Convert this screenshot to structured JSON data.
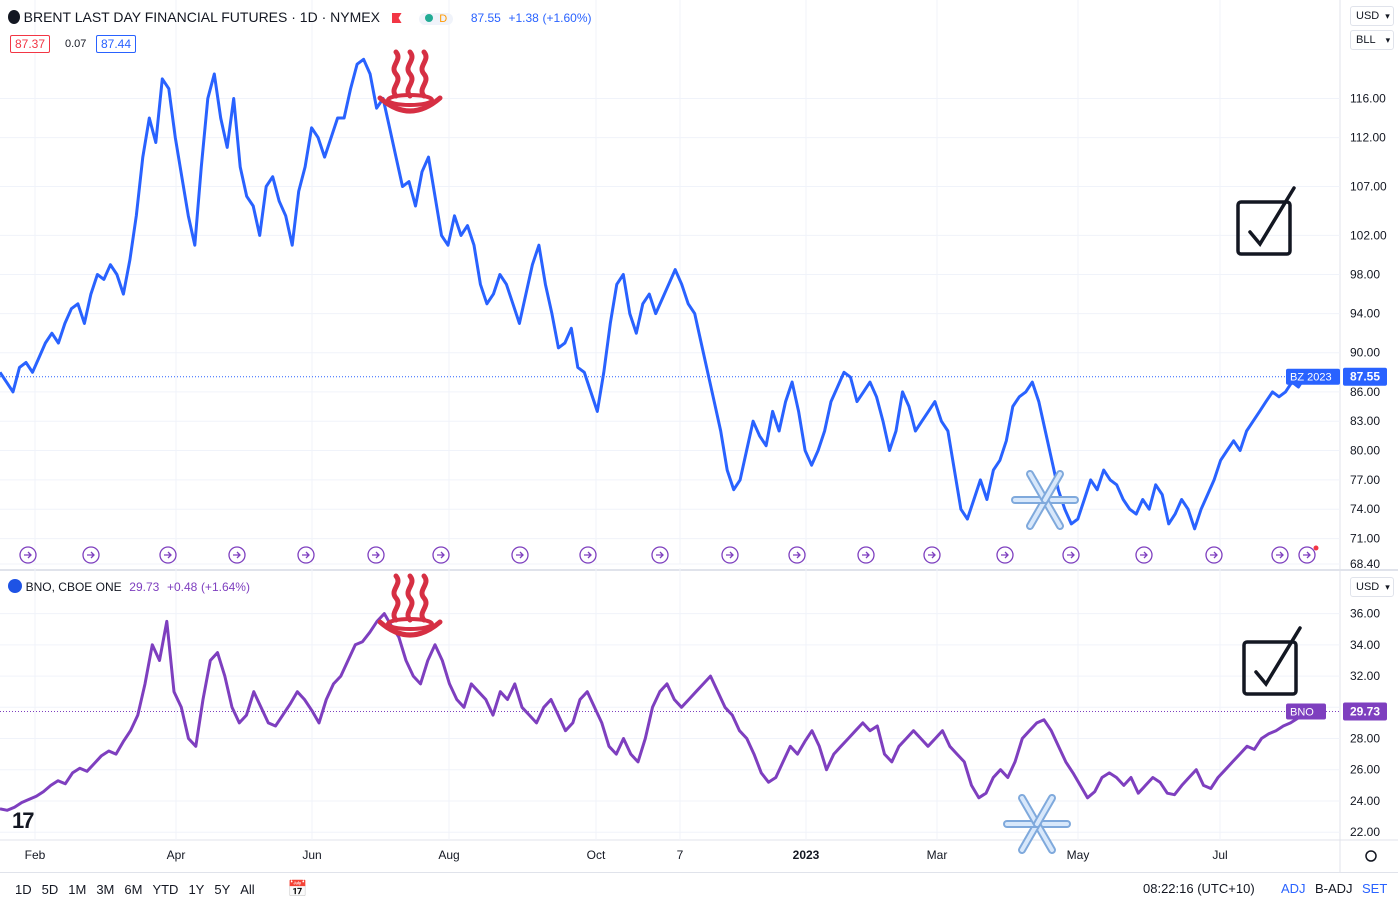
{
  "top_pane": {
    "title": "BRENT LAST DAY FINANCIAL FUTURES · 1D · NYMEX",
    "flag_color": "#f23645",
    "status_letter": "D",
    "last": "87.55",
    "change": "+1.38",
    "change_pct": "(+1.60%)",
    "bid": "87.37",
    "spread": "0.07",
    "ask": "87.44",
    "currency": "USD",
    "unit": "BLL",
    "price_tag_symbol": "BZ",
    "price_tag_year": "2023",
    "price_tag_value": "87.55",
    "line_color": "#2962ff",
    "y_ticks": [
      "116.00",
      "112.00",
      "107.00",
      "102.00",
      "98.00",
      "94.00",
      "90.00",
      "86.00",
      "83.00",
      "80.00",
      "77.00",
      "74.00",
      "71.00",
      "68.40"
    ]
  },
  "bottom_pane": {
    "title": "BNO, CBOE ONE",
    "last": "29.73",
    "change": "+0.48",
    "change_pct": "(+1.64%)",
    "currency": "USD",
    "price_tag_symbol": "BNO",
    "price_tag_value": "29.73",
    "line_color": "#7e3fbf",
    "y_ticks": [
      "36.00",
      "34.00",
      "32.00",
      "30.00",
      "28.00",
      "26.00",
      "24.00",
      "22.00"
    ]
  },
  "x_axis_labels": [
    "Feb",
    "Apr",
    "Jun",
    "Aug",
    "Oct",
    "7",
    "2023",
    "Mar",
    "May",
    "Jul"
  ],
  "bottom_bar": {
    "periods": [
      "1D",
      "5D",
      "1M",
      "3M",
      "6M",
      "YTD",
      "1Y",
      "5Y",
      "All"
    ],
    "time": "08:22:16 (UTC+10)",
    "adj": "ADJ",
    "badj": "B-ADJ",
    "set": "SET"
  },
  "icons": {
    "hot": "hot-springs-icon",
    "snow": "snowflake-icon",
    "check": "checkbox-icon",
    "event": "dividend-event-icon",
    "logo": "tradingview-logo"
  },
  "chart_data": [
    {
      "type": "line",
      "series": [
        {
          "name": "BZ",
          "values": [
            88.0,
            87.0,
            86.0,
            88.5,
            89.0,
            88.0,
            89.5,
            91.0,
            92.0,
            91.0,
            93.0,
            94.5,
            95.0,
            93.0,
            96.0,
            98.0,
            97.5,
            99.0,
            98.0,
            96.0,
            99.5,
            104.0,
            110.0,
            114.0,
            111.5,
            118.0,
            117.0,
            112.0,
            108.0,
            104.0,
            101.0,
            109.0,
            116.0,
            118.5,
            114.0,
            111.0,
            116.0,
            109.0,
            106.0,
            105.0,
            102.0,
            107.0,
            108.0,
            105.5,
            104.0,
            101.0,
            106.5,
            109.0,
            113.0,
            112.0,
            110.0,
            112.0,
            114.0,
            114.0,
            117.0,
            119.5,
            120.0,
            118.5,
            115.0,
            116.0,
            113.0,
            110.0,
            107.0,
            107.5,
            105.0,
            108.5,
            110.0,
            106.0,
            102.0,
            101.0,
            104.0,
            102.0,
            103.0,
            101.0,
            97.0,
            95.0,
            96.0,
            98.0,
            97.0,
            95.0,
            93.0,
            96.0,
            99.0,
            101.0,
            97.0,
            94.0,
            90.5,
            91.0,
            92.5,
            88.5,
            88.0,
            86.0,
            84.0,
            88.0,
            93.0,
            97.0,
            98.0,
            94.0,
            92.0,
            95.0,
            96.0,
            94.0,
            95.5,
            97.0,
            98.5,
            97.0,
            95.0,
            94.0,
            91.0,
            88.0,
            85.0,
            82.0,
            78.0,
            76.0,
            77.0,
            80.0,
            83.0,
            81.5,
            80.5,
            84.0,
            82.0,
            85.0,
            87.0,
            84.0,
            80.0,
            78.5,
            80.0,
            82.0,
            85.0,
            86.5,
            88.0,
            87.5,
            85.0,
            86.0,
            87.0,
            85.5,
            83.0,
            80.0,
            82.0,
            86.0,
            84.5,
            82.0,
            83.0,
            84.0,
            85.0,
            83.0,
            82.0,
            78.0,
            74.0,
            73.0,
            75.0,
            77.0,
            75.0,
            78.0,
            79.0,
            81.0,
            84.5,
            85.5,
            86.0,
            87.0,
            85.0,
            82.0,
            79.0,
            76.0,
            74.0,
            72.5,
            73.0,
            75.0,
            77.0,
            76.0,
            78.0,
            77.0,
            76.5,
            75.0,
            74.0,
            73.5,
            75.0,
            74.0,
            76.5,
            75.5,
            72.5,
            73.5,
            75.0,
            74.0,
            72.0,
            74.0,
            75.5,
            77.0,
            79.0,
            80.0,
            81.0,
            80.0,
            82.0,
            83.0,
            84.0,
            85.0,
            86.0,
            85.5,
            86.0,
            87.0,
            86.5,
            87.55
          ]
        }
      ],
      "ylim": [
        68.4,
        123
      ],
      "x_labels": [
        "Feb",
        "Apr",
        "Jun",
        "Aug",
        "Oct",
        "7",
        "2023",
        "Mar",
        "May",
        "Jul"
      ],
      "title": "BRENT LAST DAY FINANCIAL FUTURES · 1D · NYMEX"
    },
    {
      "type": "line",
      "series": [
        {
          "name": "BNO",
          "values": [
            23.5,
            23.4,
            23.6,
            23.9,
            24.1,
            24.3,
            24.6,
            25.0,
            25.3,
            25.1,
            25.8,
            26.1,
            25.9,
            26.4,
            26.9,
            27.2,
            27.0,
            27.8,
            28.5,
            29.5,
            31.5,
            34.0,
            33.0,
            35.5,
            31.0,
            30.0,
            28.0,
            27.5,
            30.5,
            33.0,
            33.5,
            32.0,
            30.0,
            29.0,
            29.5,
            31.0,
            30.0,
            29.0,
            28.8,
            29.5,
            30.2,
            31.0,
            30.5,
            29.8,
            29.0,
            30.5,
            31.5,
            32.0,
            33.0,
            34.0,
            34.2,
            34.8,
            35.5,
            36.0,
            35.2,
            34.5,
            33.0,
            32.0,
            31.5,
            33.0,
            34.0,
            33.0,
            31.5,
            30.5,
            30.0,
            31.5,
            31.0,
            30.5,
            29.5,
            31.0,
            30.5,
            31.5,
            30.0,
            29.5,
            29.0,
            30.0,
            30.5,
            29.5,
            28.5,
            29.0,
            30.5,
            31.0,
            30.0,
            29.0,
            27.5,
            27.0,
            28.0,
            27.0,
            26.5,
            28.0,
            30.0,
            31.0,
            31.5,
            30.5,
            30.0,
            30.5,
            31.0,
            31.5,
            32.0,
            31.0,
            30.0,
            29.5,
            28.5,
            28.0,
            27.0,
            25.8,
            25.2,
            25.5,
            26.5,
            27.5,
            27.0,
            27.8,
            28.5,
            27.5,
            26.0,
            27.0,
            27.5,
            28.0,
            28.5,
            29.0,
            28.5,
            28.8,
            27.0,
            26.5,
            27.5,
            28.0,
            28.5,
            28.0,
            27.5,
            28.0,
            28.5,
            27.5,
            27.0,
            26.5,
            25.0,
            24.2,
            24.5,
            25.5,
            26.0,
            25.5,
            26.5,
            28.0,
            28.5,
            29.0,
            29.2,
            28.5,
            27.5,
            26.5,
            25.8,
            25.0,
            24.2,
            24.6,
            25.5,
            25.8,
            25.5,
            25.0,
            25.5,
            24.5,
            25.0,
            25.5,
            25.2,
            24.5,
            24.4,
            25.0,
            25.5,
            26.0,
            25.0,
            24.8,
            25.5,
            26.0,
            26.5,
            27.0,
            27.5,
            27.3,
            28.0,
            28.3,
            28.5,
            28.8,
            29.0,
            29.3,
            29.73
          ]
        }
      ],
      "ylim": [
        21.5,
        37.0
      ],
      "x_labels": [
        "Feb",
        "Apr",
        "Jun",
        "Aug",
        "Oct",
        "7",
        "2023",
        "Mar",
        "May",
        "Jul"
      ],
      "title": "BNO, CBOE ONE"
    }
  ]
}
